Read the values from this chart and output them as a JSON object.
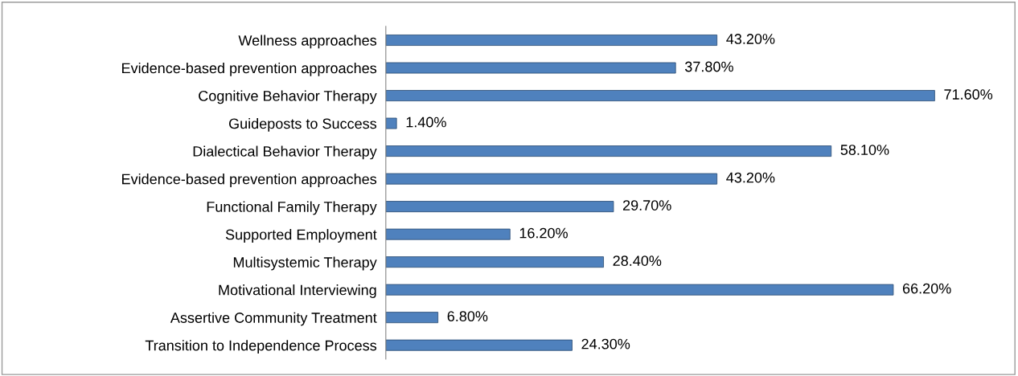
{
  "chart_data": {
    "type": "bar",
    "orientation": "horizontal",
    "categories": [
      "Wellness approaches",
      "Evidence-based prevention approaches",
      "Cognitive Behavior Therapy",
      "Guideposts to Success",
      "Dialectical Behavior Therapy",
      "Evidence-based prevention approaches",
      "Functional Family Therapy",
      "Supported Employment",
      "Multisystemic Therapy",
      "Motivational Interviewing",
      "Assertive Community Treatment",
      "Transition to Independence Process"
    ],
    "values": [
      43.2,
      37.8,
      71.6,
      1.4,
      58.1,
      43.2,
      29.7,
      16.2,
      28.4,
      66.2,
      6.8,
      24.3
    ],
    "value_labels": [
      "43.20%",
      "37.80%",
      "71.60%",
      "1.40%",
      "58.10%",
      "43.20%",
      "29.70%",
      "16.20%",
      "28.40%",
      "66.20%",
      "6.80%",
      "24.30%"
    ],
    "color": "#4f81bd"
  }
}
